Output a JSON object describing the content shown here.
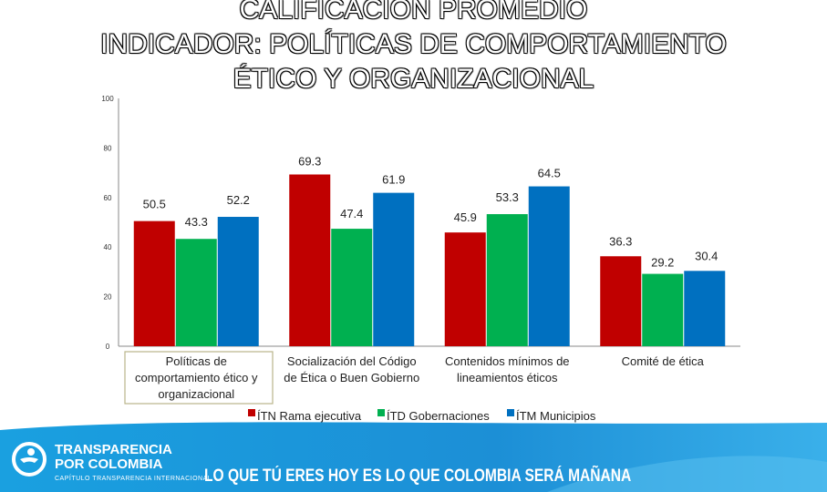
{
  "title_lines": [
    "CALIFICACIÓN PROMEDIO",
    "INDICADOR: POLÍTICAS DE COMPORTAMIENTO",
    "ÉTICO Y ORGANIZACIONAL"
  ],
  "chart_data": {
    "type": "bar",
    "categories": [
      [
        "Políticas de",
        "comportamiento ético y",
        "organizacional"
      ],
      [
        "Socialización del Código",
        "de Ética o Buen Gobierno"
      ],
      [
        "Contenidos mínimos de",
        "lineamientos éticos"
      ],
      [
        "Comité de ética"
      ]
    ],
    "series": [
      {
        "name": "ÍTN Rama ejecutiva",
        "color": "#c00000",
        "values": [
          50.5,
          69.3,
          45.9,
          36.3
        ],
        "labels": [
          "50.5",
          "69.3",
          "45.9",
          "36.3"
        ]
      },
      {
        "name": "ÍTD Gobernaciones",
        "color": "#00b050",
        "values": [
          43.3,
          47.4,
          53.3,
          29.2
        ],
        "labels": [
          "43.3",
          "47.4",
          "53.3",
          "29.2"
        ]
      },
      {
        "name": "ÍTM Municipios",
        "color": "#0070c0",
        "values": [
          52.2,
          61.9,
          64.5,
          30.4
        ],
        "labels": [
          "52.2",
          "61.9",
          "64.5",
          "30.4"
        ]
      }
    ],
    "yticks": [
      "0",
      "20",
      "40",
      "60",
      "80",
      "100"
    ],
    "ylim": [
      0,
      100
    ],
    "legend_position": "bottom"
  },
  "footer": {
    "brand_line1": "TRANSPARENCIA",
    "brand_line2": "POR COLOMBIA",
    "brand_sub": "CAPÍTULO TRANSPARENCIA INTERNACIONAL",
    "slogan": "LO QUE TÚ ERES HOY ES LO QUE COLOMBIA SERÁ MAÑANA"
  }
}
